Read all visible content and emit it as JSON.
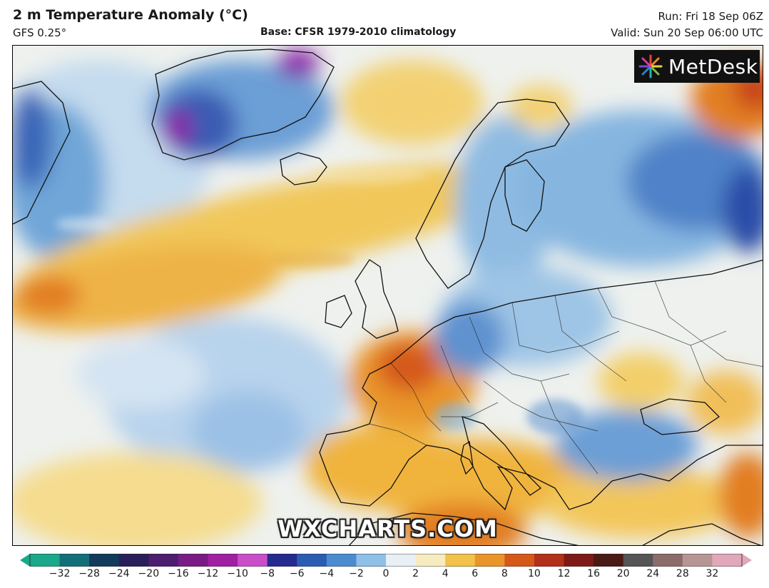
{
  "header": {
    "title": "2 m Temperature Anomaly (°C)",
    "model": "GFS 0.25°",
    "base": "Base: CFSR 1979-2010 climatology",
    "run": "Run: Fri 18 Sep 06Z",
    "valid": "Valid: Sun 20 Sep 06:00 UTC"
  },
  "logo": {
    "text": "MetDesk",
    "icon": "starburst-icon"
  },
  "watermark": "WXCHARTS.COM",
  "colorbar": {
    "ticks": [
      "−32",
      "−28",
      "−24",
      "−20",
      "−16",
      "−12",
      "−10",
      "−8",
      "−6",
      "−4",
      "−2",
      "0",
      "2",
      "4",
      "6",
      "8",
      "10",
      "12",
      "16",
      "20",
      "24",
      "28",
      "32"
    ],
    "colors": [
      "#19a88a",
      "#136f77",
      "#123a5c",
      "#2a1e5a",
      "#4d1d70",
      "#7a1a86",
      "#a11fa3",
      "#c94ec8",
      "#252a8f",
      "#2a5db2",
      "#4b8cd0",
      "#8ec0e8",
      "#e8f0f6",
      "#f7ecc0",
      "#f2c24a",
      "#e9952a",
      "#d6591a",
      "#b3301a",
      "#7e1a16",
      "#4a1a14",
      "#555555",
      "#8c6b6b",
      "#b89595",
      "#e0a8b8"
    ]
  },
  "colors": {
    "warm_light": "#f6dc8a",
    "warm": "#f0b43c",
    "warm_strong": "#e27e23",
    "hot": "#c8441c",
    "neutral": "#f3f1ea",
    "cool_light": "#c8dcee",
    "cool": "#7eb2dc",
    "cold": "#3d6ebc",
    "very_cold": "#2846a0",
    "extreme_cold": "#8a23a8"
  }
}
